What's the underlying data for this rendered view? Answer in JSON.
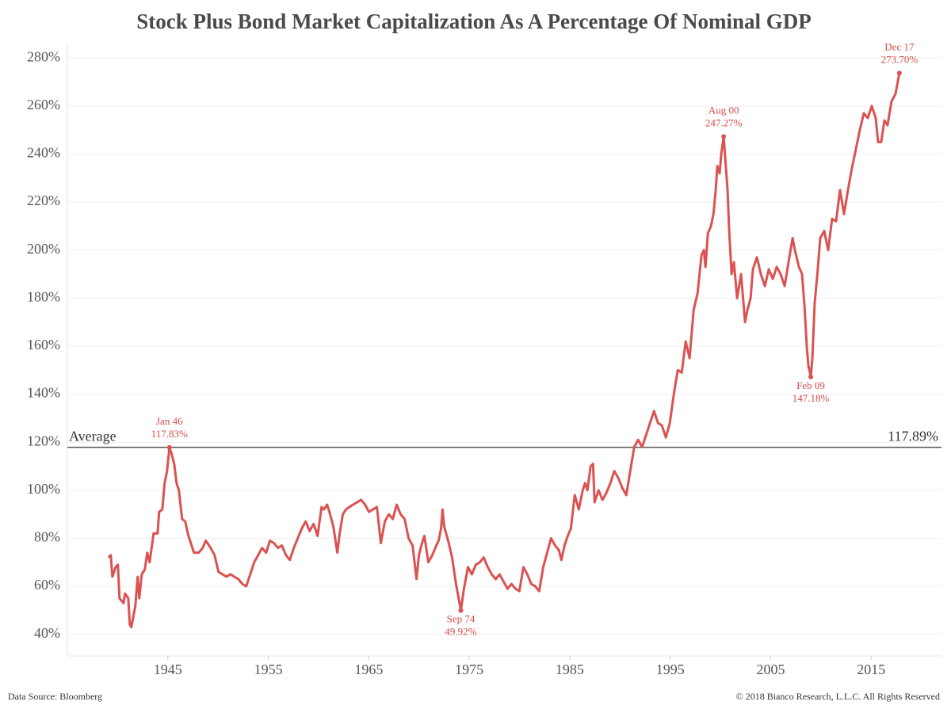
{
  "chart_data": {
    "type": "line",
    "title": "Stock Plus Bond Market Capitalization As A Percentage Of Nominal GDP",
    "source": "Data Source: Bloomberg",
    "copyright": "© 2018 Bianco Research, L.L.C. All Rights Reserved",
    "color": "#db5252",
    "grid": true,
    "xlim": [
      1935,
      2022
    ],
    "ylim": [
      31,
      286
    ],
    "xticks": [
      1945,
      1955,
      1965,
      1975,
      1985,
      1995,
      2005,
      2015
    ],
    "yticks": [
      {
        "value": 40,
        "label": "40%"
      },
      {
        "value": 60,
        "label": "60%"
      },
      {
        "value": 80,
        "label": "80%"
      },
      {
        "value": 100,
        "label": "100%"
      },
      {
        "value": 120,
        "label": "120%"
      },
      {
        "value": 140,
        "label": "140%"
      },
      {
        "value": 160,
        "label": "160%"
      },
      {
        "value": 180,
        "label": "180%"
      },
      {
        "value": 200,
        "label": "200%"
      },
      {
        "value": 220,
        "label": "220%"
      },
      {
        "value": 240,
        "label": "240%"
      },
      {
        "value": 260,
        "label": "260%"
      },
      {
        "value": 280,
        "label": "280%"
      }
    ],
    "average": {
      "label": "Average",
      "value": 117.89,
      "value_label": "117.89%"
    },
    "annotations": [
      {
        "label": "Jan 46",
        "value": 117.83,
        "value_label": "117.83%",
        "x": 1945.16,
        "position": "above"
      },
      {
        "label": "Sep 74",
        "value": 49.92,
        "value_label": "49.92%",
        "x": 1974.16,
        "position": "below"
      },
      {
        "label": "Aug 00",
        "value": 247.27,
        "value_label": "247.27%",
        "x": 2000.32,
        "position": "above"
      },
      {
        "label": "Feb 09",
        "value": 147.18,
        "value_label": "147.18%",
        "x": 2008.99,
        "position": "below"
      },
      {
        "label": "Dec 17",
        "value": 273.7,
        "value_label": "273.70%",
        "x": 2017.81,
        "position": "above"
      }
    ],
    "x": [
      1939.09,
      1939.32,
      1939.48,
      1939.8,
      1940.03,
      1940.19,
      1940.59,
      1940.74,
      1941.06,
      1941.22,
      1941.37,
      1941.77,
      1942.0,
      1942.16,
      1942.4,
      1942.71,
      1942.95,
      1943.19,
      1943.58,
      1943.98,
      1944.13,
      1944.45,
      1944.68,
      1944.92,
      1945.16,
      1945.39,
      1945.63,
      1945.87,
      1946.1,
      1946.42,
      1946.73,
      1947.05,
      1947.29,
      1947.6,
      1948.07,
      1948.47,
      1948.78,
      1949.26,
      1949.65,
      1950.04,
      1950.44,
      1950.83,
      1951.23,
      1951.62,
      1952.02,
      1952.41,
      1952.8,
      1953.2,
      1953.59,
      1953.99,
      1954.38,
      1954.78,
      1955.17,
      1955.56,
      1955.96,
      1956.35,
      1956.75,
      1957.14,
      1957.54,
      1957.93,
      1958.32,
      1958.72,
      1959.11,
      1959.51,
      1959.9,
      1960.3,
      1960.53,
      1960.85,
      1961.08,
      1961.47,
      1961.87,
      1962.1,
      1962.42,
      1962.73,
      1963.05,
      1963.44,
      1963.84,
      1964.23,
      1964.63,
      1965.02,
      1965.41,
      1965.81,
      1966.2,
      1966.6,
      1966.99,
      1967.39,
      1967.78,
      1968.17,
      1968.57,
      1968.96,
      1969.36,
      1969.75,
      1969.99,
      1970.3,
      1970.53,
      1970.93,
      1971.32,
      1971.72,
      1971.95,
      1972.19,
      1972.34,
      1972.5,
      1972.9,
      1973.29,
      1973.68,
      1974.08,
      1974.16,
      1974.47,
      1974.87,
      1975.26,
      1975.65,
      1976.05,
      1976.44,
      1976.84,
      1977.23,
      1977.63,
      1978.02,
      1978.41,
      1978.81,
      1979.2,
      1979.6,
      1979.99,
      1980.39,
      1980.78,
      1981.17,
      1981.57,
      1981.96,
      1982.36,
      1982.75,
      1983.14,
      1983.54,
      1983.93,
      1984.17,
      1984.48,
      1984.8,
      1985.11,
      1985.5,
      1985.9,
      1986.29,
      1986.53,
      1986.76,
      1987.08,
      1987.32,
      1987.47,
      1987.87,
      1988.26,
      1988.66,
      1989.05,
      1989.44,
      1989.84,
      1990.23,
      1990.63,
      1991.02,
      1991.42,
      1991.81,
      1992.2,
      1992.6,
      1992.99,
      1993.39,
      1993.78,
      1994.17,
      1994.57,
      1994.96,
      1995.36,
      1995.75,
      1996.15,
      1996.54,
      1996.93,
      1997.33,
      1997.72,
      1998.12,
      1998.35,
      1998.51,
      1998.75,
      1999.06,
      1999.3,
      1999.53,
      1999.69,
      1999.92,
      2000.08,
      2000.32,
      2000.48,
      2000.71,
      2000.87,
      2001.11,
      2001.34,
      2001.66,
      2002.05,
      2002.45,
      2002.68,
      2003.0,
      2003.23,
      2003.63,
      2004.02,
      2004.42,
      2004.81,
      2005.21,
      2005.6,
      2005.99,
      2006.39,
      2006.78,
      2007.18,
      2007.41,
      2007.81,
      2008.12,
      2008.36,
      2008.59,
      2008.75,
      2008.99,
      2009.15,
      2009.38,
      2009.69,
      2009.93,
      2010.33,
      2010.72,
      2011.11,
      2011.51,
      2011.9,
      2012.3,
      2012.69,
      2013.08,
      2013.48,
      2013.87,
      2014.27,
      2014.66,
      2015.06,
      2015.45,
      2015.69,
      2016.0,
      2016.32,
      2016.63,
      2017.03,
      2017.42,
      2017.81
    ],
    "values": [
      72,
      73,
      64,
      68,
      69,
      55,
      53,
      57,
      55,
      44,
      43,
      52,
      64,
      55,
      65,
      67,
      74,
      70,
      82,
      82,
      91,
      92,
      103,
      108,
      117.83,
      115,
      111,
      103,
      100,
      88,
      87,
      81,
      78,
      74,
      74,
      76,
      79,
      76,
      73,
      66,
      65,
      64,
      65,
      64,
      63,
      61,
      60,
      65,
      70,
      73,
      76,
      74,
      79,
      78,
      76,
      77,
      73,
      71,
      76,
      80,
      84,
      87,
      83,
      86,
      81,
      93,
      92,
      94,
      91,
      85,
      74,
      82,
      90,
      92,
      93,
      94,
      95,
      96,
      94,
      91,
      92,
      93,
      78,
      87,
      90,
      88,
      94,
      90,
      88,
      80,
      77,
      63,
      73,
      78,
      81,
      70,
      73,
      77,
      79,
      84,
      92,
      85,
      79,
      72,
      61,
      52,
      49.92,
      59,
      68,
      65,
      69,
      70,
      72,
      68,
      65,
      63,
      65,
      62,
      59,
      61,
      59,
      58,
      68,
      65,
      61,
      60,
      58,
      68,
      74,
      80,
      77,
      75,
      71,
      77,
      81,
      84,
      98,
      92,
      100,
      103,
      100,
      110,
      111,
      95,
      100,
      96,
      99,
      103,
      108,
      105,
      101,
      98,
      108,
      118,
      121,
      118,
      123,
      128,
      133,
      128,
      127,
      122,
      128,
      140,
      150,
      149,
      162,
      155,
      175,
      182,
      198,
      200,
      193,
      207,
      210,
      215,
      225,
      235,
      232,
      240,
      247.27,
      238,
      225,
      208,
      190,
      195,
      180,
      190,
      170,
      175,
      180,
      192,
      197,
      190,
      185,
      192,
      188,
      193,
      190,
      185,
      195,
      205,
      200,
      193,
      190,
      177,
      160,
      152,
      147.18,
      155,
      178,
      192,
      205,
      208,
      200,
      213,
      212,
      225,
      215,
      225,
      234,
      242,
      250,
      257,
      255,
      260,
      255,
      245,
      245,
      254,
      252,
      262,
      265,
      273.7
    ]
  }
}
